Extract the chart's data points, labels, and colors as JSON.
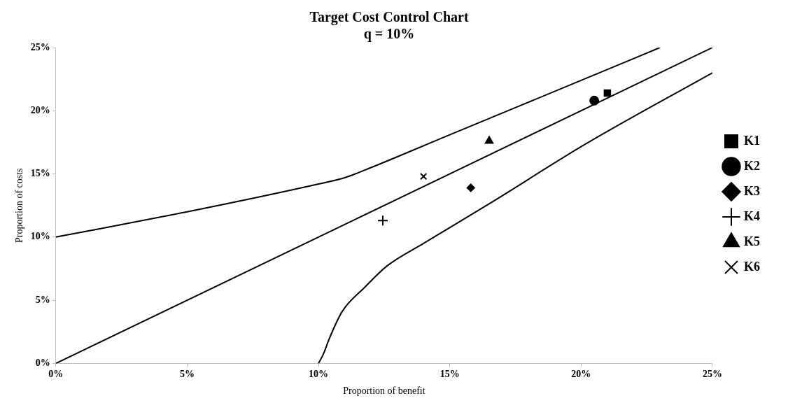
{
  "chart_data": {
    "type": "scatter",
    "title": "Target Cost Control Chart",
    "subtitle": "q = 10%",
    "xlabel": "Proportion of benefit",
    "ylabel": "Proportion of costs",
    "xlim": [
      0,
      25
    ],
    "ylim": [
      0,
      25
    ],
    "xticks": [
      {
        "value": 0,
        "label": "0%"
      },
      {
        "value": 5,
        "label": "5%"
      },
      {
        "value": 10,
        "label": "10%"
      },
      {
        "value": 15,
        "label": "15%"
      },
      {
        "value": 20,
        "label": "20%"
      },
      {
        "value": 25,
        "label": "25%"
      }
    ],
    "yticks": [
      {
        "value": 0,
        "label": "0%"
      },
      {
        "value": 5,
        "label": "5%"
      },
      {
        "value": 10,
        "label": "10%"
      },
      {
        "value": 15,
        "label": "15%"
      },
      {
        "value": 20,
        "label": "20%"
      },
      {
        "value": 25,
        "label": "25%"
      }
    ],
    "grid": false,
    "legend": "right",
    "series": [
      {
        "type": "line",
        "color": "#000000",
        "marker": "none",
        "x": [
          0,
          5,
          10,
          11,
          12,
          15,
          20,
          23
        ],
        "values": [
          10,
          12,
          14.2,
          14.7,
          15.5,
          18.1,
          22.4,
          25
        ]
      },
      {
        "type": "line",
        "color": "#000000",
        "marker": "none",
        "x": [
          0,
          25
        ],
        "values": [
          0,
          25
        ]
      },
      {
        "type": "line",
        "color": "#000000",
        "marker": "none",
        "x": [
          10,
          10.2,
          10.4,
          10.9,
          11.75,
          12.6,
          14,
          16.55,
          20.2,
          25
        ],
        "values": [
          0,
          0.8,
          1.9,
          4.1,
          6,
          7.7,
          9.5,
          12.7,
          17.4,
          23
        ]
      },
      {
        "name": "K1",
        "color": "#000000",
        "marker": "square",
        "x": [
          21
        ],
        "values": [
          21.4
        ]
      },
      {
        "name": "K2",
        "color": "#000000",
        "marker": "circle",
        "x": [
          20.5
        ],
        "values": [
          20.8
        ]
      },
      {
        "name": "K3",
        "color": "#000000",
        "marker": "diamond",
        "x": [
          15.8
        ],
        "values": [
          13.9
        ]
      },
      {
        "name": "K4",
        "color": "#000000",
        "marker": "plus",
        "x": [
          12.45
        ],
        "values": [
          11.3
        ]
      },
      {
        "name": "K5",
        "color": "#000000",
        "marker": "triangle",
        "x": [
          16.5
        ],
        "values": [
          17.6
        ]
      },
      {
        "name": "K6",
        "color": "#000000",
        "marker": "cross",
        "x": [
          14
        ],
        "values": [
          14.8
        ]
      }
    ]
  }
}
